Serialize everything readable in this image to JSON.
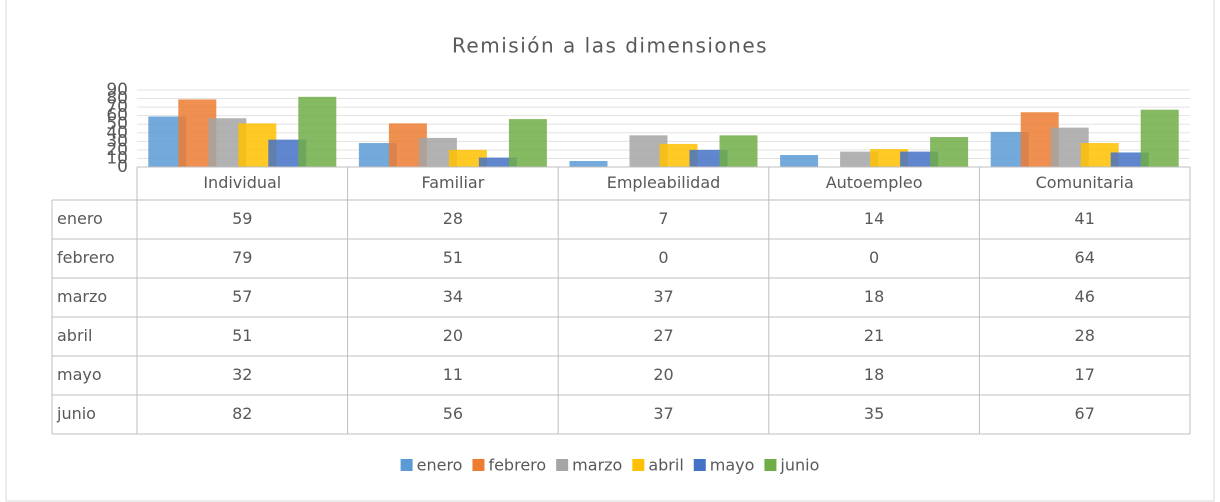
{
  "chart_data": {
    "type": "bar",
    "title": "Remisión a las dimensiones",
    "categories": [
      "Individual",
      "Familiar",
      "Empleabilidad",
      "Autoempleo",
      "Comunitaria"
    ],
    "series": [
      {
        "name": "enero",
        "color": "#5b9bd5",
        "values": [
          59,
          28,
          7,
          14,
          41
        ]
      },
      {
        "name": "febrero",
        "color": "#ed7d31",
        "values": [
          79,
          51,
          0,
          0,
          64
        ]
      },
      {
        "name": "marzo",
        "color": "#a5a5a5",
        "values": [
          57,
          34,
          37,
          18,
          46
        ]
      },
      {
        "name": "abril",
        "color": "#ffc000",
        "values": [
          51,
          20,
          27,
          21,
          28
        ]
      },
      {
        "name": "mayo",
        "color": "#4472c4",
        "values": [
          32,
          11,
          20,
          18,
          17
        ]
      },
      {
        "name": "junio",
        "color": "#70ad47",
        "values": [
          82,
          56,
          37,
          35,
          67
        ]
      }
    ],
    "ylim": [
      0,
      90
    ],
    "yticks": [
      0,
      10,
      20,
      30,
      40,
      50,
      60,
      70,
      80,
      90
    ],
    "grid": true,
    "legend": "bottom"
  }
}
